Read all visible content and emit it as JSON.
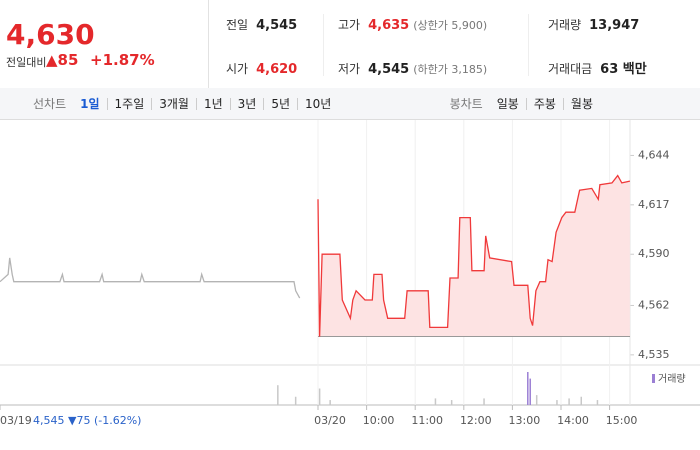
{
  "header": {
    "price": "4,630",
    "change_label": "전일대비",
    "change": "▲85",
    "change_pct": "+1.87%",
    "stats": [
      {
        "label": "전일",
        "value": "4,545"
      },
      {
        "label": "고가",
        "value": "4,635",
        "note": "(상한가 5,900)"
      },
      {
        "label": "거래량",
        "value": "13,947"
      },
      {
        "label": "시가",
        "value": "4,620"
      },
      {
        "label": "저가",
        "value": "4,545",
        "note": "(하한가 3,185)"
      },
      {
        "label": "거래대금",
        "value": "63 백만"
      }
    ]
  },
  "tabs": {
    "line_label": "선차트",
    "line_periods": [
      "1일",
      "1주일",
      "3개월",
      "1년",
      "3년",
      "5년",
      "10년"
    ],
    "candle_label": "봉차트",
    "candle_periods": [
      "일봉",
      "주봉",
      "월봉"
    ]
  },
  "prev_day_summary": "4,545 ▼75 (-1.62%)",
  "chart_data": [
    {
      "type": "line",
      "xlim": [
        "03/19 09:00",
        "03/20 15:30"
      ],
      "ylim": [
        4530,
        4659
      ],
      "yticks": [
        {
          "value": 4644,
          "label": "4,644"
        },
        {
          "value": 4617,
          "label": "4,617"
        },
        {
          "value": 4590,
          "label": "4,590"
        },
        {
          "value": 4562,
          "label": "4,562"
        },
        {
          "value": 4535,
          "label": "4,535"
        }
      ],
      "xticks": [
        {
          "value": "03/19 09:00",
          "label": "03/19"
        },
        {
          "value": "03/20 09:00",
          "label": "03/20"
        },
        {
          "value": "03/20 10:00",
          "label": "10:00"
        },
        {
          "value": "03/20 11:00",
          "label": "11:00"
        },
        {
          "value": "03/20 12:00",
          "label": "12:00"
        },
        {
          "value": "03/20 13:00",
          "label": "13:00"
        },
        {
          "value": "03/20 14:00",
          "label": "14:00"
        },
        {
          "value": "03/20 15:00",
          "label": "15:00"
        }
      ],
      "baseline": 4545,
      "grid": false,
      "series": [
        {
          "color": "#b4b4b4",
          "x": [
            "03/19 09:00",
            "03/19 09:10",
            "03/19 09:12",
            "03/19 09:15",
            "03/19 09:17",
            "03/19 10:14",
            "03/19 10:17",
            "03/19 10:19",
            "03/19 11:03",
            "03/19 11:06",
            "03/19 11:08",
            "03/19 11:53",
            "03/19 11:55",
            "03/19 11:58",
            "03/19 13:07",
            "03/19 13:09",
            "03/19 13:12",
            "03/19 15:03",
            "03/19 15:05",
            "03/19 15:10"
          ],
          "values": [
            4575,
            4579,
            4588,
            4579,
            4575,
            4575,
            4579,
            4575,
            4575,
            4579,
            4575,
            4575,
            4579,
            4575,
            4575,
            4579,
            4575,
            4575,
            4570,
            4566
          ]
        },
        {
          "color": "#f0393a",
          "fill": "#fde3e3",
          "x": [
            "03/20 09:00",
            "03/20 09:02",
            "03/20 09:05",
            "03/20 09:27",
            "03/20 09:30",
            "03/20 09:40",
            "03/20 09:43",
            "03/20 09:47",
            "03/20 09:58",
            "03/20 10:07",
            "03/20 10:09",
            "03/20 10:19",
            "03/20 10:21",
            "03/20 10:26",
            "03/20 10:47",
            "03/20 10:50",
            "03/20 11:16",
            "03/20 11:18",
            "03/20 11:40",
            "03/20 11:43",
            "03/20 11:53",
            "03/20 11:55",
            "03/20 12:08",
            "03/20 12:10",
            "03/20 12:25",
            "03/20 12:27",
            "03/20 12:32",
            "03/20 12:59",
            "03/20 13:02",
            "03/20 13:19",
            "03/20 13:22",
            "03/20 13:25",
            "03/20 13:29",
            "03/20 13:34",
            "03/20 13:41",
            "03/20 13:44",
            "03/20 13:49",
            "03/20 13:54",
            "03/20 14:01",
            "03/20 14:06",
            "03/20 14:17",
            "03/20 14:23",
            "03/20 14:38",
            "03/20 14:46",
            "03/20 14:48",
            "03/20 15:03",
            "03/20 15:10",
            "03/20 15:15",
            "03/20 15:25"
          ],
          "values": [
            4620,
            4545,
            4590,
            4590,
            4565,
            4555,
            4565,
            4570,
            4565,
            4565,
            4579,
            4579,
            4565,
            4555,
            4555,
            4570,
            4570,
            4550,
            4550,
            4577,
            4577,
            4610,
            4610,
            4581,
            4581,
            4600,
            4588,
            4586,
            4573,
            4573,
            4555,
            4551,
            4570,
            4575,
            4575,
            4587,
            4586,
            4602,
            4610,
            4613,
            4613,
            4625,
            4626,
            4620,
            4628,
            4629,
            4633,
            4629,
            4630
          ]
        }
      ]
    },
    {
      "type": "bar",
      "ylim": [
        0,
        1000
      ],
      "series": [
        {
          "color": "#c8c8c8",
          "x": [
            "03/19 14:43",
            "03/19 15:05",
            "03/20 09:02",
            "03/20 09:15",
            "03/20 11:25",
            "03/20 11:45",
            "03/20 12:25",
            "03/20 13:30",
            "03/20 13:55",
            "03/20 14:10",
            "03/20 14:25",
            "03/20 14:45"
          ],
          "values": [
            600,
            250,
            500,
            150,
            200,
            150,
            200,
            300,
            150,
            200,
            250,
            150
          ]
        },
        {
          "name": "거래량",
          "color": "#9b7fd4",
          "x": [
            "03/20 13:19",
            "03/20 13:22"
          ],
          "values": [
            1000,
            800
          ]
        }
      ]
    }
  ]
}
